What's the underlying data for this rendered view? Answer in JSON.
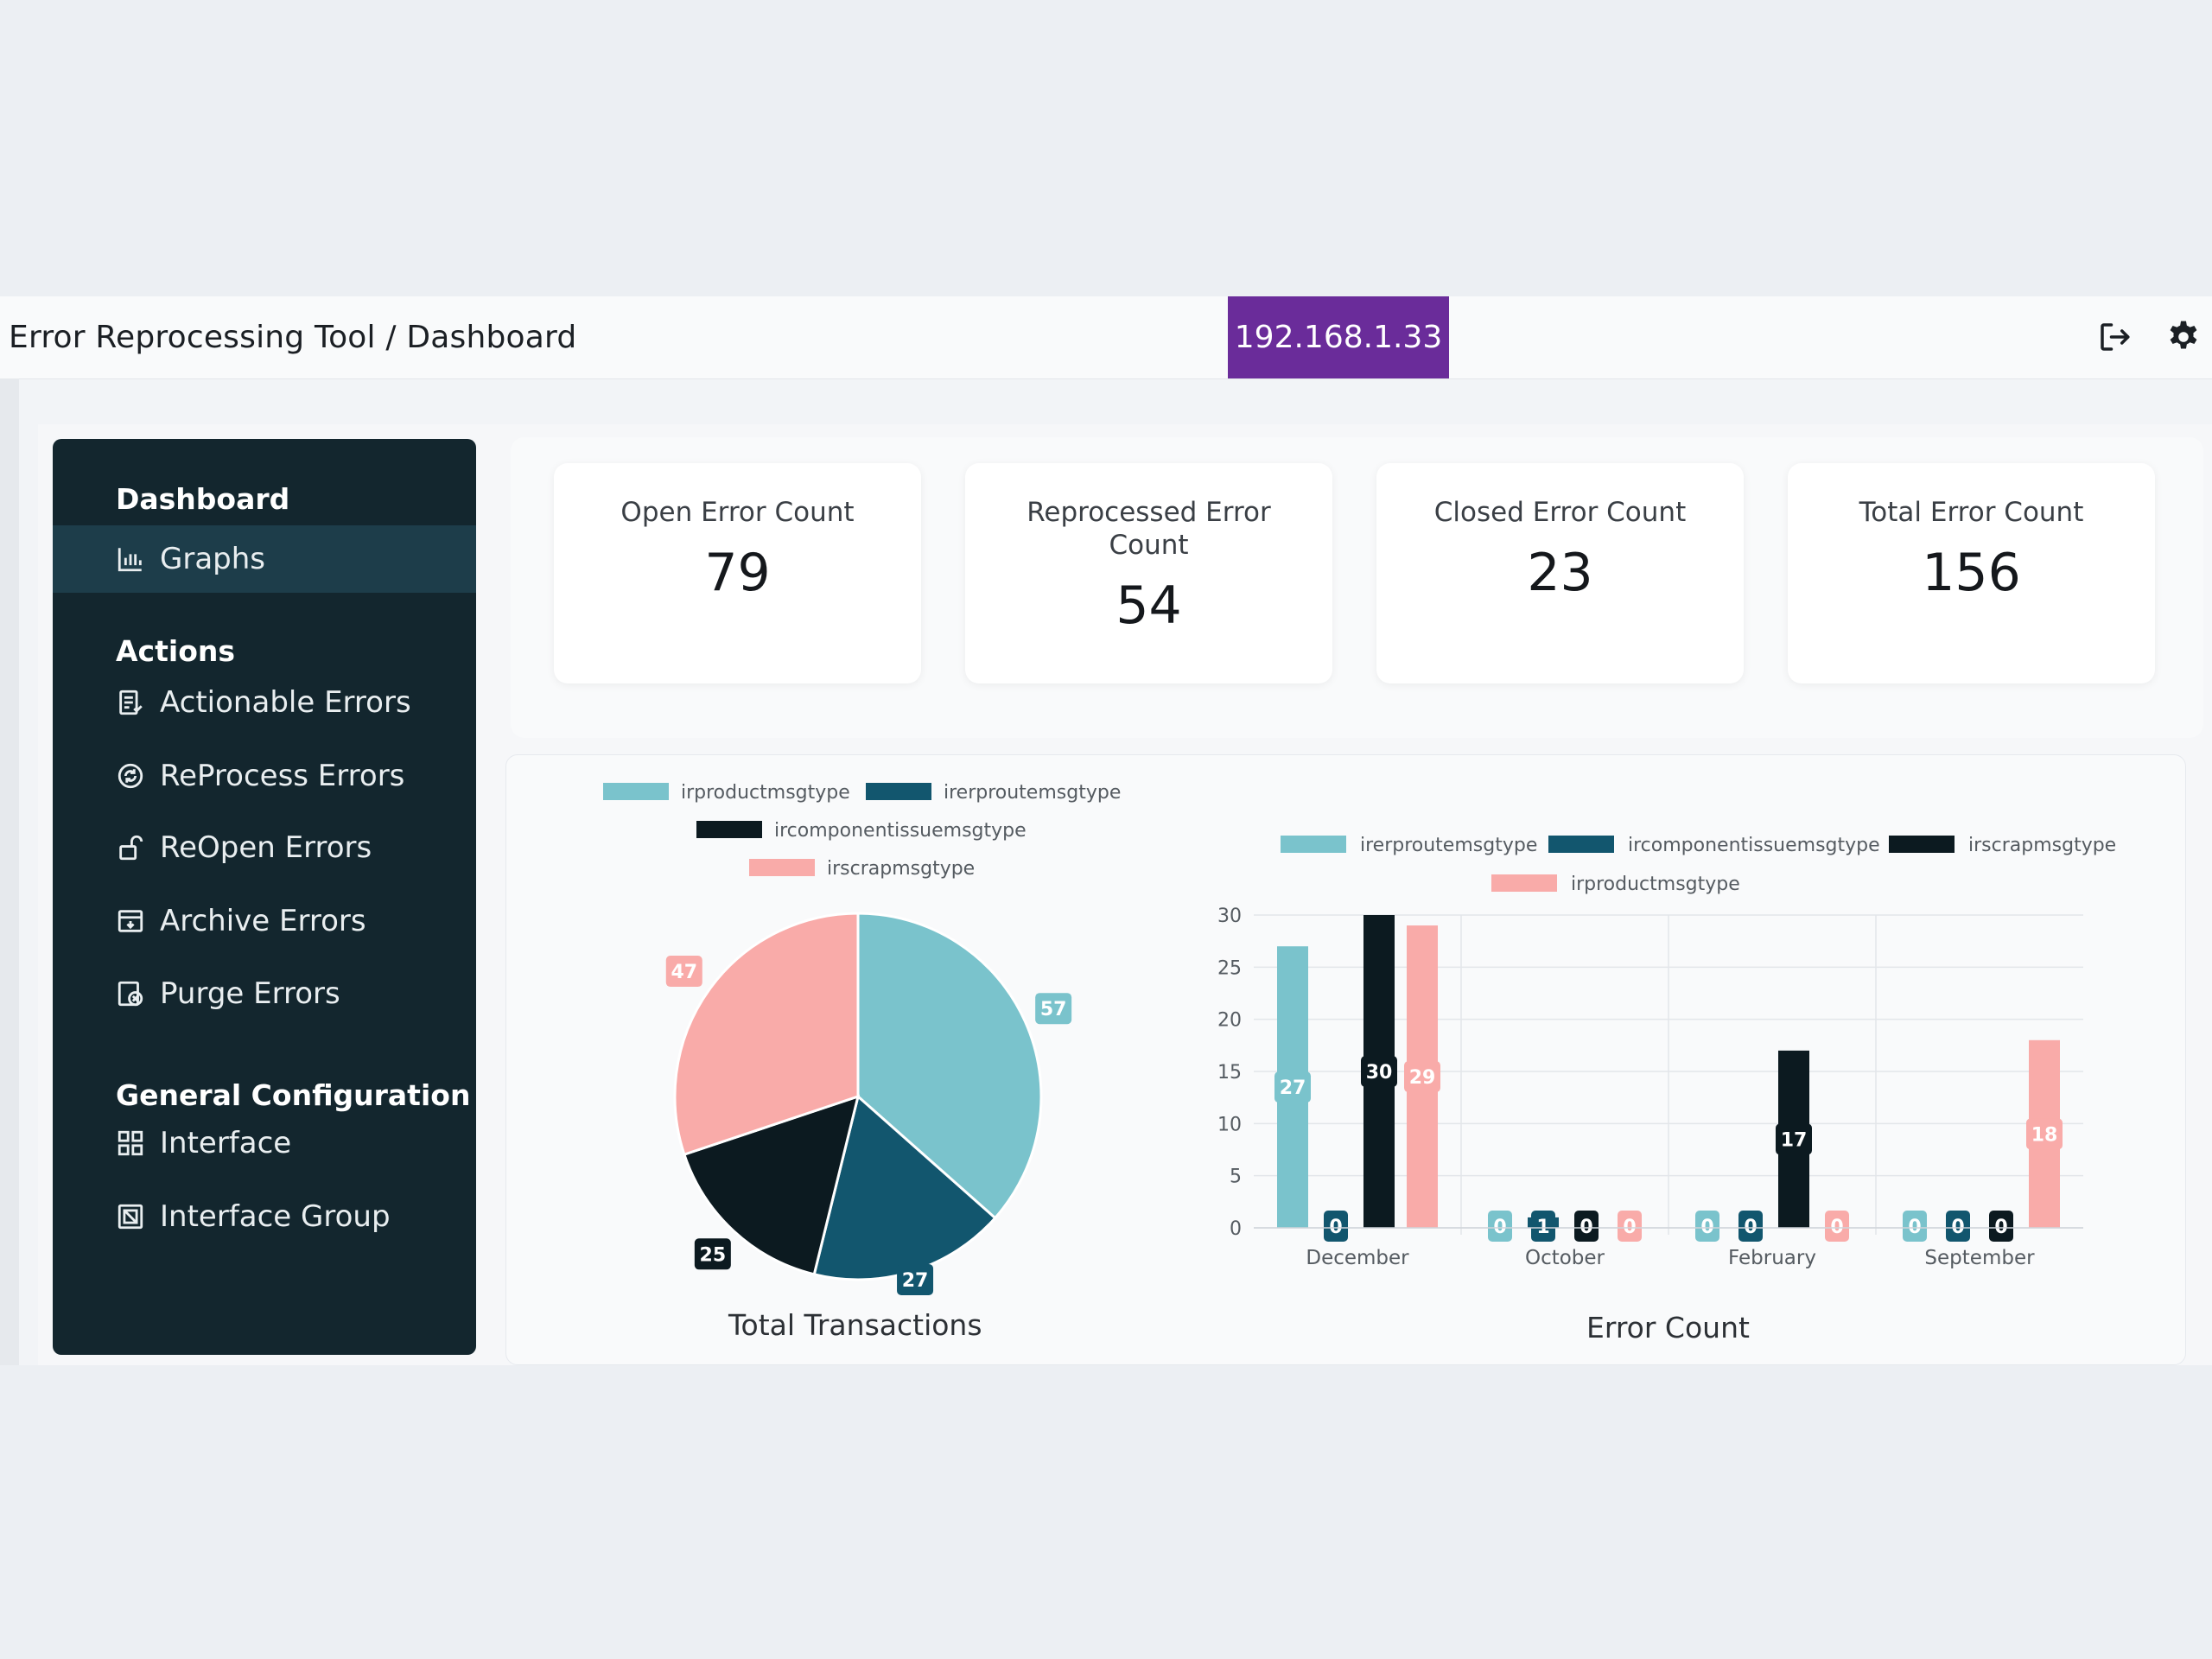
{
  "header": {
    "title": "Error Reprocessing Tool / Dashboard",
    "ip": "192.168.1.33"
  },
  "sidebar": {
    "sections": [
      {
        "title": "Dashboard",
        "items": [
          {
            "label": "Graphs",
            "icon": "bar-chart-icon",
            "active": true
          }
        ]
      },
      {
        "title": "Actions",
        "items": [
          {
            "label": "Actionable Errors",
            "icon": "list-check-icon"
          },
          {
            "label": "ReProcess Errors",
            "icon": "refresh-icon"
          },
          {
            "label": "ReOpen Errors",
            "icon": "unlock-icon"
          },
          {
            "label": "Archive Errors",
            "icon": "archive-icon"
          },
          {
            "label": "Purge Errors",
            "icon": "purge-icon"
          }
        ]
      },
      {
        "title": "General Configuration",
        "items": [
          {
            "label": "Interface",
            "icon": "grid-icon"
          },
          {
            "label": "Interface Group",
            "icon": "group-icon"
          }
        ]
      }
    ]
  },
  "cards": [
    {
      "title": "Open Error Count",
      "value": "79"
    },
    {
      "title": "Reprocessed Error Count",
      "value": "54"
    },
    {
      "title": "Closed Error Count",
      "value": "23"
    },
    {
      "title": "Total Error Count",
      "value": "156"
    }
  ],
  "colors": {
    "irproductmsgtype": "#7ac3cc",
    "irerproutemsgtype": "#12566e",
    "ircomponentissuemsgtype": "#0c1a20",
    "irscrapmsgtype": "#f9aba9"
  },
  "chart_data": [
    {
      "type": "pie",
      "title": "Total Transactions",
      "legend": [
        "irproductmsgtype",
        "irerproutemsgtype",
        "ircomponentissuemsgtype",
        "irscrapmsgtype"
      ],
      "slices": [
        {
          "label": "irproductmsgtype",
          "value": 57
        },
        {
          "label": "irerproutemsgtype",
          "value": 27
        },
        {
          "label": "ircomponentissuemsgtype",
          "value": 25
        },
        {
          "label": "irscrapmsgtype",
          "value": 47
        }
      ]
    },
    {
      "type": "bar",
      "title": "Error Count",
      "categories": [
        "December",
        "October",
        "February",
        "September"
      ],
      "ylim": [
        0,
        30
      ],
      "yticks": [
        0,
        5,
        10,
        15,
        20,
        25,
        30
      ],
      "series": [
        {
          "name": "irerproutemsgtype",
          "color": "#7ac3cc",
          "values": [
            27,
            0,
            0,
            0
          ]
        },
        {
          "name": "ircomponentissuemsgtype",
          "color": "#12566e",
          "values": [
            0,
            1,
            0,
            0
          ]
        },
        {
          "name": "irscrapmsgtype",
          "color": "#0c1a20",
          "values": [
            30,
            0,
            17,
            0
          ]
        },
        {
          "name": "irproductmsgtype",
          "color": "#f9aba9",
          "values": [
            29,
            0,
            0,
            18
          ]
        }
      ],
      "grid": true,
      "legend_position": "top"
    }
  ]
}
